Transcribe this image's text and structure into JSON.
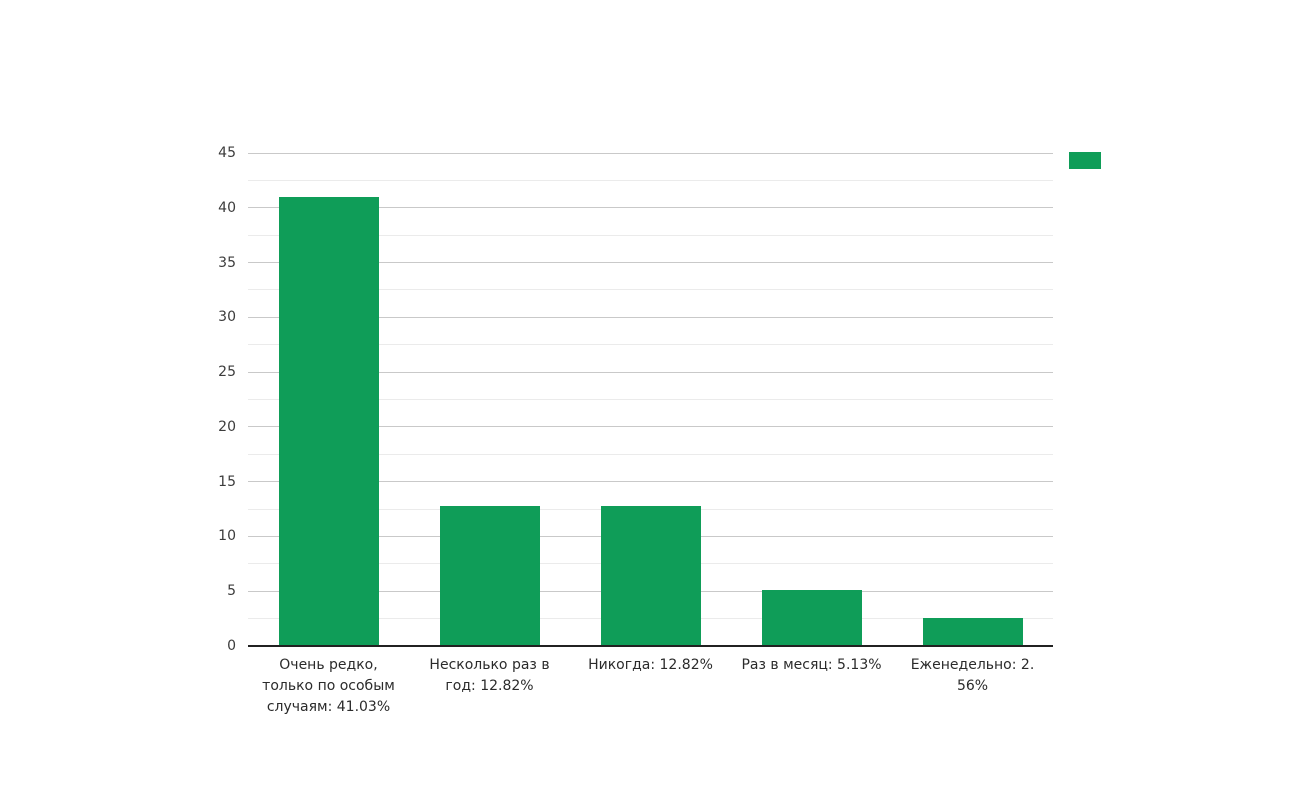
{
  "chart_data": {
    "type": "bar",
    "title": "",
    "categories": [
      "Очень редко, только по особым случаям: 41.03%",
      "Несколько раз в год: 12.82%",
      "Никогда: 12.82%",
      "Раз в месяц: 5.13%",
      "Еженедельно: 2.56%"
    ],
    "categories_wrapped": [
      [
        "Очень редко,",
        "только по особым",
        "случаям: 41.03%"
      ],
      [
        "Несколько раз в",
        "год: 12.82%"
      ],
      [
        "Никогда: 12.82%"
      ],
      [
        "Раз в месяц: 5.13%"
      ],
      [
        "Еженедельно: 2.",
        "56%"
      ]
    ],
    "values": [
      41.03,
      12.82,
      12.82,
      5.13,
      2.56
    ],
    "xlabel": "",
    "ylabel": "",
    "ylim": [
      0,
      45
    ],
    "yticks": [
      0,
      5,
      10,
      15,
      20,
      25,
      30,
      35,
      40,
      45
    ],
    "ytick_step": 5,
    "minor_tick_step": 2.5,
    "grid": true,
    "legend": {
      "position": "top-right",
      "label": "",
      "swatch_color": "#0f9d58"
    }
  },
  "colors": {
    "bar": "#0f9d58",
    "grid_major": "#c9c9c9",
    "grid_minor": "#ebebeb",
    "axis_line": "#212121",
    "text": "#3c3c3c",
    "background": "#ffffff"
  }
}
